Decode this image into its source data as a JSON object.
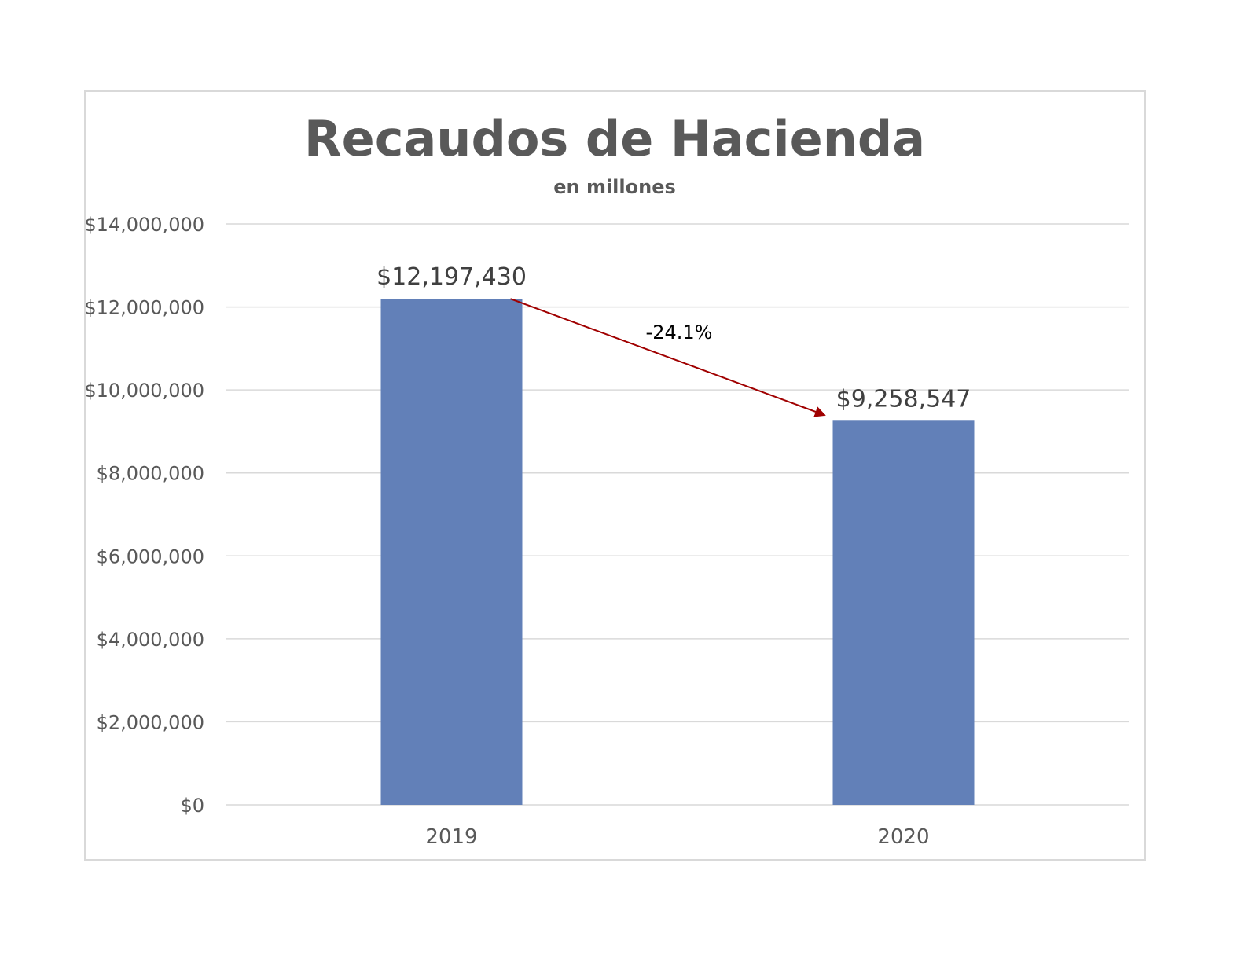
{
  "chart_data": {
    "type": "bar",
    "title": "Recaudos de Hacienda",
    "subtitle": "en millones",
    "categories": [
      "2019",
      "2020"
    ],
    "values": [
      12197430,
      9258547
    ],
    "data_labels": [
      "$12,197,430",
      "$9,258,547"
    ],
    "ylim": [
      0,
      14000000
    ],
    "yticks": [
      0,
      2000000,
      4000000,
      6000000,
      8000000,
      10000000,
      12000000,
      14000000
    ],
    "ytick_labels": [
      "$0",
      "$2,000,000",
      "$4,000,000",
      "$6,000,000",
      "$8,000,000",
      "$10,000,000",
      "$12,000,000",
      "$14,000,000"
    ],
    "grid": true,
    "legend": "none",
    "annotation": {
      "text": "-24.1%",
      "from_category": "2019",
      "to_category": "2020"
    },
    "colors": {
      "bar": "#6280b8",
      "arrow": "#a00000",
      "grid": "#d9d9d9"
    }
  }
}
